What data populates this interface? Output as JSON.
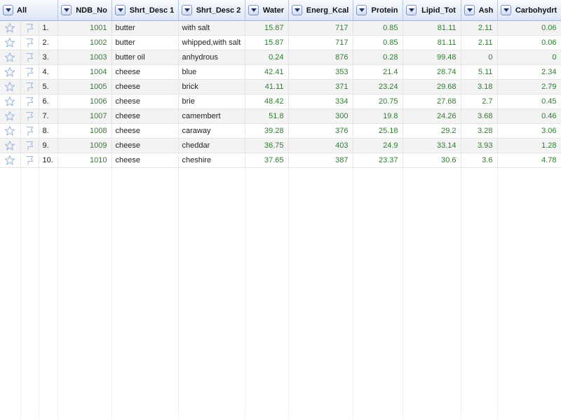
{
  "header": {
    "select_label": "All",
    "columns": [
      "NDB_No",
      "Shrt_Desc 1",
      "Shrt_Desc 2",
      "Water",
      "Energ_Kcal",
      "Protein",
      "Lipid_Tot",
      "Ash",
      "Carbohydrt"
    ]
  },
  "icons": {
    "star": "star-outline-icon",
    "flag": "flag-outline-icon",
    "dropdown": "chevron-down-icon"
  },
  "colors": {
    "numeric_text": "#2e7d2e",
    "header_bg": "#dde6f6",
    "icon": "#a9bde0"
  },
  "rows": [
    {
      "index": "1.",
      "ndb_no": "1001",
      "desc1": "butter",
      "desc2": "with salt",
      "water": "15.87",
      "kcal": "717",
      "protein": "0.85",
      "lipid": "81.11",
      "ash": "2.11",
      "carb": "0.06"
    },
    {
      "index": "2.",
      "ndb_no": "1002",
      "desc1": "butter",
      "desc2": "whipped,with salt",
      "water": "15.87",
      "kcal": "717",
      "protein": "0.85",
      "lipid": "81.11",
      "ash": "2.11",
      "carb": "0.06"
    },
    {
      "index": "3.",
      "ndb_no": "1003",
      "desc1": "butter oil",
      "desc2": "anhydrous",
      "water": "0.24",
      "kcal": "876",
      "protein": "0.28",
      "lipid": "99.48",
      "ash": "0",
      "carb": "0"
    },
    {
      "index": "4.",
      "ndb_no": "1004",
      "desc1": "cheese",
      "desc2": "blue",
      "water": "42.41",
      "kcal": "353",
      "protein": "21.4",
      "lipid": "28.74",
      "ash": "5.11",
      "carb": "2.34"
    },
    {
      "index": "5.",
      "ndb_no": "1005",
      "desc1": "cheese",
      "desc2": "brick",
      "water": "41.11",
      "kcal": "371",
      "protein": "23.24",
      "lipid": "29.68",
      "ash": "3.18",
      "carb": "2.79"
    },
    {
      "index": "6.",
      "ndb_no": "1006",
      "desc1": "cheese",
      "desc2": "brie",
      "water": "48.42",
      "kcal": "334",
      "protein": "20.75",
      "lipid": "27.68",
      "ash": "2.7",
      "carb": "0.45"
    },
    {
      "index": "7.",
      "ndb_no": "1007",
      "desc1": "cheese",
      "desc2": "camembert",
      "water": "51.8",
      "kcal": "300",
      "protein": "19.8",
      "lipid": "24.26",
      "ash": "3.68",
      "carb": "0.46"
    },
    {
      "index": "8.",
      "ndb_no": "1008",
      "desc1": "cheese",
      "desc2": "caraway",
      "water": "39.28",
      "kcal": "376",
      "protein": "25.18",
      "lipid": "29.2",
      "ash": "3.28",
      "carb": "3.06"
    },
    {
      "index": "9.",
      "ndb_no": "1009",
      "desc1": "cheese",
      "desc2": "cheddar",
      "water": "36.75",
      "kcal": "403",
      "protein": "24.9",
      "lipid": "33.14",
      "ash": "3.93",
      "carb": "1.28"
    },
    {
      "index": "10.",
      "ndb_no": "1010",
      "desc1": "cheese",
      "desc2": "cheshire",
      "water": "37.65",
      "kcal": "387",
      "protein": "23.37",
      "lipid": "30.6",
      "ash": "3.6",
      "carb": "4.78"
    }
  ]
}
